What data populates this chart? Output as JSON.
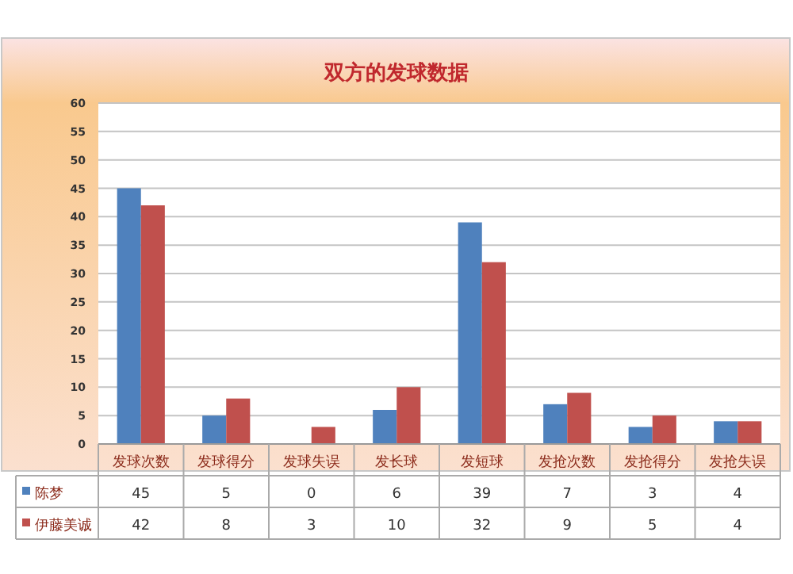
{
  "chart_data": {
    "type": "bar",
    "title": "双方的发球数据",
    "categories": [
      "发球次数",
      "发球得分",
      "发球失误",
      "发长球",
      "发短球",
      "发抢次数",
      "发抢得分",
      "发抢失误"
    ],
    "series": [
      {
        "name": "陈梦",
        "color": "#4f81bd",
        "values": [
          45,
          5,
          0,
          6,
          39,
          7,
          3,
          4
        ]
      },
      {
        "name": "伊藤美诚",
        "color": "#c0504d",
        "values": [
          42,
          8,
          3,
          10,
          32,
          9,
          5,
          4
        ]
      }
    ],
    "ylim": [
      0,
      60
    ],
    "yticks": [
      0,
      5,
      10,
      15,
      20,
      25,
      30,
      35,
      40,
      45,
      50,
      55,
      60
    ],
    "grid": "y",
    "legend": "bottom",
    "data_labels": true
  }
}
